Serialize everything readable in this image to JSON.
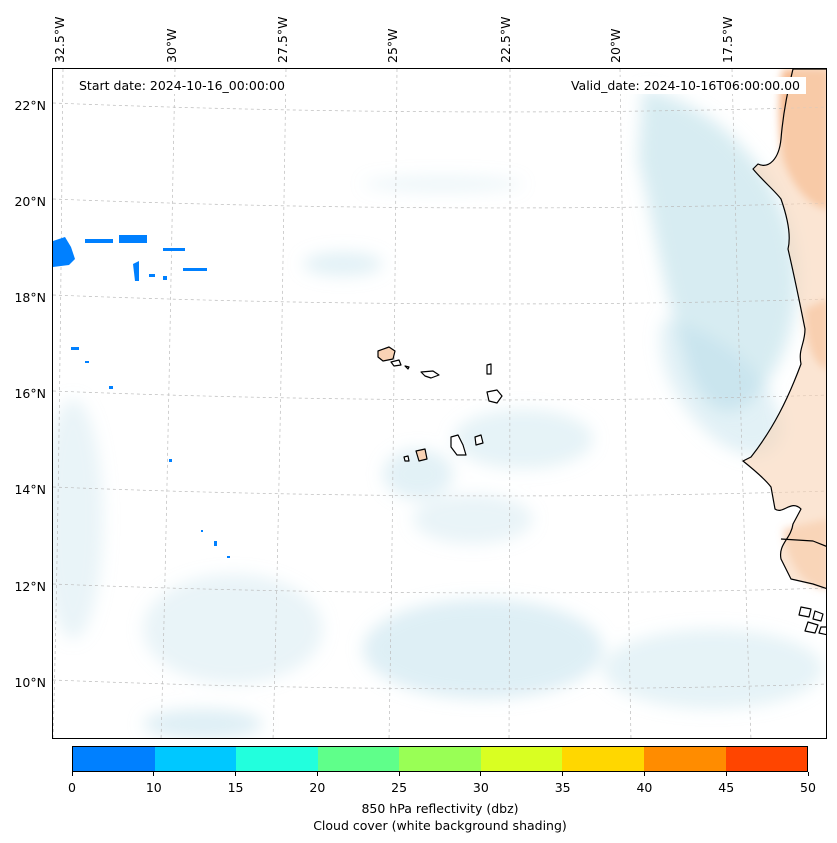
{
  "header": {
    "start_date": "Start date: 2024-10-16_00:00:00",
    "valid_date": "Valid_date: 2024-10-16T06:00:00.00"
  },
  "axes": {
    "lon_labels": [
      "32.5°W",
      "30°W",
      "27.5°W",
      "25°W",
      "22.5°W",
      "20°W",
      "17.5°W"
    ],
    "lat_labels": [
      "22°N",
      "20°N",
      "18°N",
      "16°N",
      "14°N",
      "12°N",
      "10°N"
    ]
  },
  "colorbar": {
    "ticks": [
      "0",
      "10",
      "15",
      "20",
      "25",
      "30",
      "35",
      "40",
      "45",
      "50"
    ],
    "colors": [
      "#0080ff",
      "#00c8ff",
      "#22ffdd",
      "#5fff8a",
      "#99ff55",
      "#d9ff22",
      "#ffd700",
      "#ff8c00",
      "#ff4500"
    ],
    "label_line1": "850 hPa reflectivity (dbz)",
    "label_line2": "Cloud cover (white background shading)"
  },
  "map": {
    "land_color": "#f9d3b5",
    "warm_shading_color": "#f4a46c",
    "cloud_color": "#b6dce8",
    "reflectivity_color": "#0080ff",
    "coastline_color": "#000000"
  }
}
